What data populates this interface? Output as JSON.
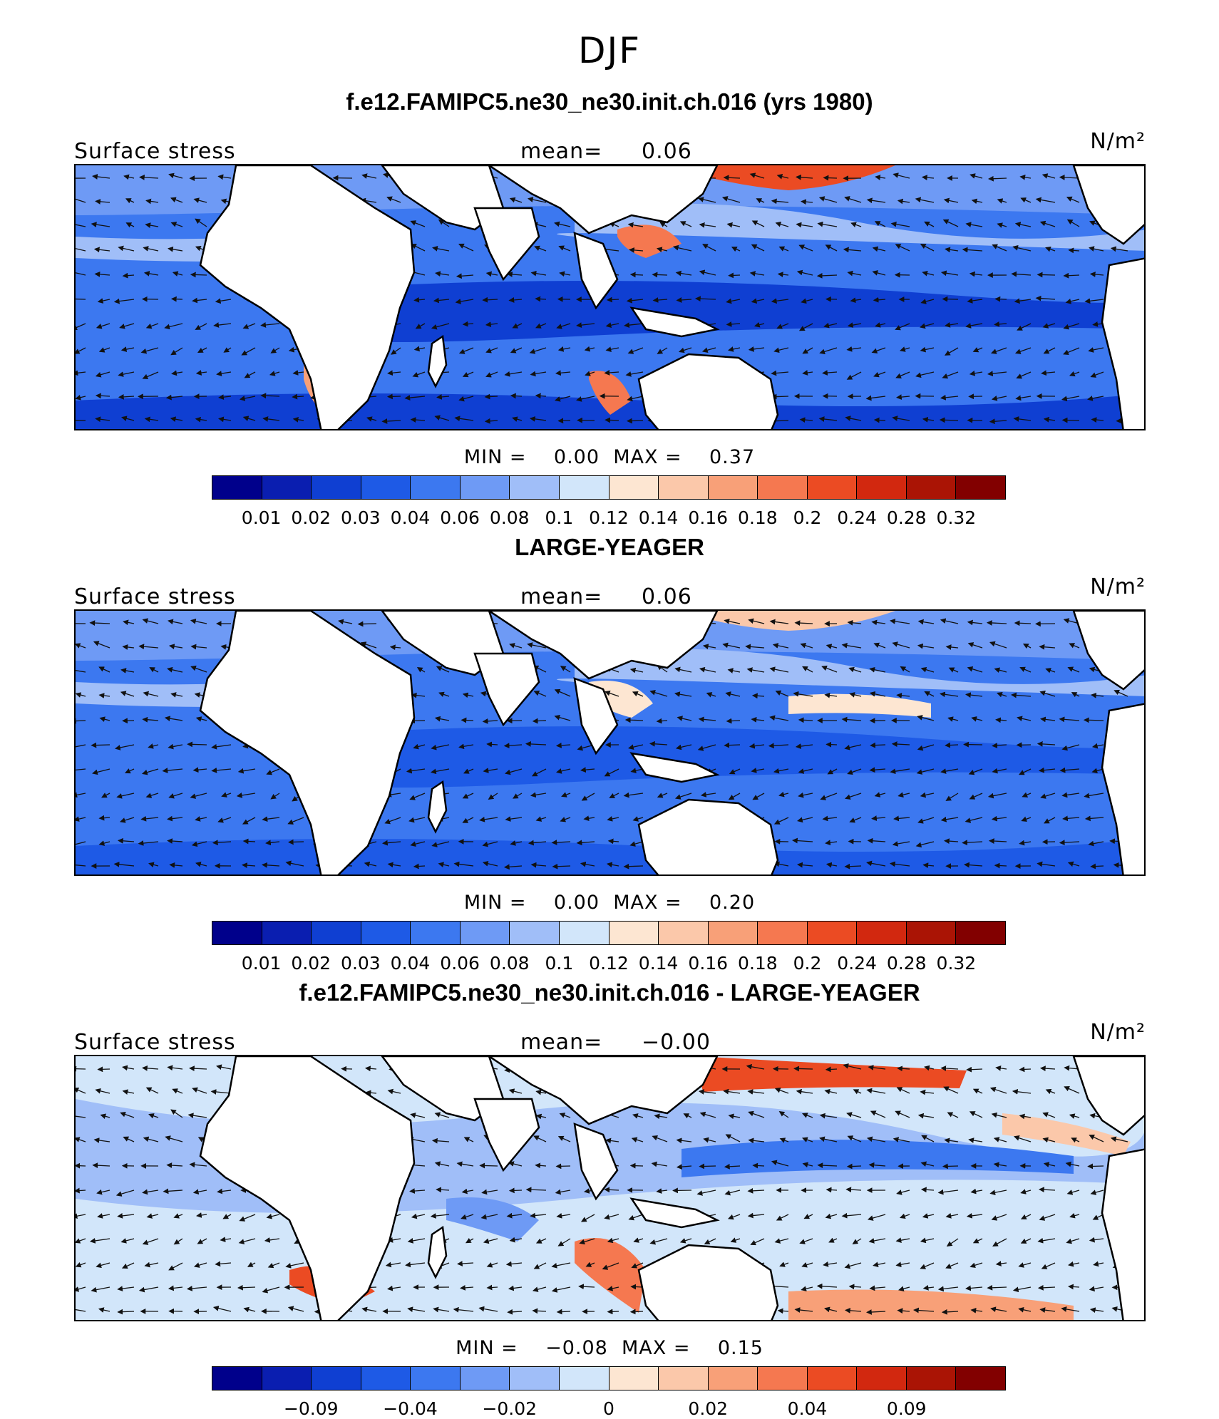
{
  "title": "DJF",
  "panels": [
    {
      "heading": "f.e12.FAMIPC5.ne30_ne30.init.ch.016 (yrs 1980)",
      "variable": "Surface stress",
      "mean_label": "mean=",
      "mean_value": "0.06",
      "units": "N/m²",
      "min_label": "MIN =",
      "min_value": "0.00",
      "max_label": "MAX =",
      "max_value": "0.37",
      "style": "model",
      "colorbar_ticks": [
        "0.01",
        "0.02",
        "0.03",
        "0.04",
        "0.06",
        "0.08",
        "0.1",
        "0.12",
        "0.14",
        "0.16",
        "0.18",
        "0.2",
        "0.24",
        "0.28",
        "0.32"
      ]
    },
    {
      "heading": "LARGE-YEAGER",
      "variable": "Surface stress",
      "mean_label": "mean=",
      "mean_value": "0.06",
      "units": "N/m²",
      "min_label": "MIN =",
      "min_value": "0.00",
      "max_label": "MAX =",
      "max_value": "0.20",
      "style": "obs",
      "colorbar_ticks": [
        "0.01",
        "0.02",
        "0.03",
        "0.04",
        "0.06",
        "0.08",
        "0.1",
        "0.12",
        "0.14",
        "0.16",
        "0.18",
        "0.2",
        "0.24",
        "0.28",
        "0.32"
      ]
    },
    {
      "heading": "f.e12.FAMIPC5.ne30_ne30.init.ch.016 - LARGE-YEAGER",
      "variable": "Surface stress",
      "mean_label": "mean=",
      "mean_value": "−0.00",
      "units": "N/m²",
      "min_label": "MIN =",
      "min_value": "−0.08",
      "max_label": "MAX =",
      "max_value": "0.15",
      "style": "diff",
      "colorbar_ticks": [
        "",
        "−0.09",
        "",
        "−0.04",
        "",
        "−0.02",
        "",
        "0",
        "",
        "0.02",
        "",
        "0.04",
        "",
        "0.09",
        ""
      ]
    }
  ],
  "colorbar_colors": [
    "#00008b",
    "#0a1eb0",
    "#0f3fd2",
    "#1e5ae6",
    "#3c78f0",
    "#6e9af5",
    "#a0beF8",
    "#d2e6fa",
    "#fde6d2",
    "#fbc8aa",
    "#f8a078",
    "#f57850",
    "#eb4b23",
    "#d2280f",
    "#aa1405",
    "#820000"
  ]
}
